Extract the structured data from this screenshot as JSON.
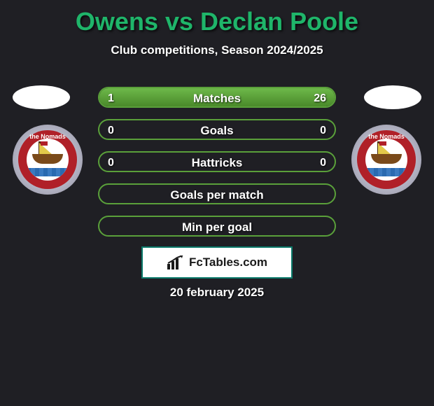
{
  "title": {
    "text": "Owens vs Declan Poole",
    "color": "#1fb56a",
    "fontsize": 36
  },
  "subtitle": "Club competitions, Season 2024/2025",
  "bars": {
    "border_color": "#5aa03a",
    "fill_gradient_from": "#6db84a",
    "fill_gradient_to": "#4a8a2a",
    "items": [
      {
        "label": "Matches",
        "left": "1",
        "right": "26",
        "left_pct": 4,
        "right_pct": 96
      },
      {
        "label": "Goals",
        "left": "0",
        "right": "0",
        "left_pct": 0,
        "right_pct": 0
      },
      {
        "label": "Hattricks",
        "left": "0",
        "right": "0",
        "left_pct": 0,
        "right_pct": 0
      },
      {
        "label": "Goals per match",
        "left": "",
        "right": "",
        "left_pct": 0,
        "right_pct": 0
      },
      {
        "label": "Min per goal",
        "left": "",
        "right": "",
        "left_pct": 0,
        "right_pct": 0
      }
    ]
  },
  "branding": {
    "text": "FcTables.com",
    "box_border": "#0b7a6a"
  },
  "date": "20 february 2025",
  "badges": {
    "ring_color": "#b02028",
    "ring_text": "the Nomads"
  },
  "colors": {
    "page_bg": "#1f1f24",
    "flag_oval": "#ffffff"
  }
}
